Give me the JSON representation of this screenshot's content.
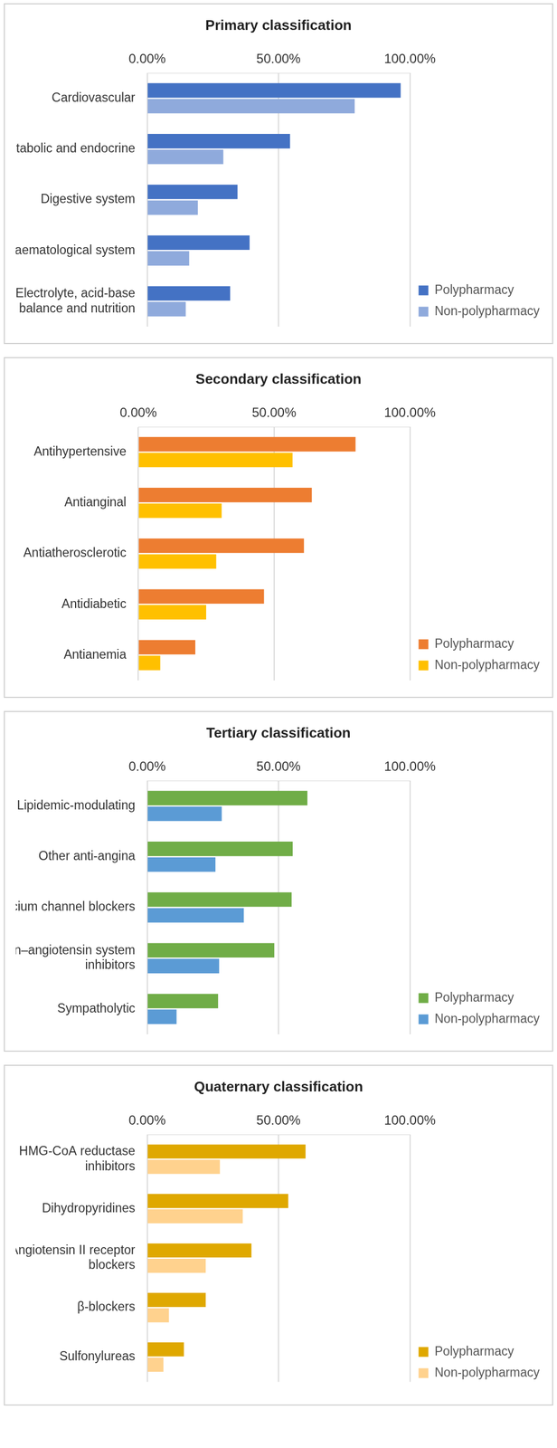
{
  "chart_data": [
    {
      "type": "bar",
      "title": "Primary classification",
      "orientation": "horizontal",
      "categories": [
        "Cardiovascular",
        "Metabolic and endocrine",
        "Digestive system",
        "Haematological system",
        "Electrolyte, acid-base balance and nutrition"
      ],
      "series": [
        {
          "name": "Polypharmacy",
          "color": "#4472c4",
          "values": [
            96.5,
            54.4,
            34.4,
            39,
            31.6
          ]
        },
        {
          "name": "Non-polypharmacy",
          "color": "#8faadc",
          "values": [
            79,
            29,
            19.3,
            16,
            14.7
          ]
        }
      ],
      "xlim": [
        0,
        100
      ],
      "xticks": [
        {
          "value": 0,
          "label": "0.00%"
        },
        {
          "value": 50,
          "label": "50.00%"
        },
        {
          "value": 100,
          "label": "100.00%"
        }
      ],
      "grid": true,
      "legend": "lower right"
    },
    {
      "type": "bar",
      "title": "Secondary classification",
      "orientation": "horizontal",
      "categories": [
        "Antihypertensive",
        "Antianginal",
        "Antiatherosclerotic",
        "Antidiabetic",
        "Antianemia"
      ],
      "series": [
        {
          "name": "Polypharmacy",
          "color": "#ed7d31",
          "values": [
            80,
            63.9,
            61,
            46.3,
            21
          ]
        },
        {
          "name": "Non-polypharmacy",
          "color": "#ffc000",
          "values": [
            56.8,
            30.7,
            28.7,
            25,
            8.1
          ]
        }
      ],
      "xlim": [
        0,
        100
      ],
      "xticks": [
        {
          "value": 0,
          "label": "0.00%"
        },
        {
          "value": 50,
          "label": "50.00%"
        },
        {
          "value": 100,
          "label": "100.00%"
        }
      ],
      "grid": true,
      "legend": "lower right"
    },
    {
      "type": "bar",
      "title": "Tertiary classification",
      "orientation": "horizontal",
      "categories": [
        "Lipidemic-modulating",
        "Other anti-angina",
        "Calcium channel blockers",
        "Renin–angiotensin system inhibitors",
        "Sympatholytic"
      ],
      "series": [
        {
          "name": "Polypharmacy",
          "color": "#70ad47",
          "values": [
            61,
            55.4,
            55,
            48.4,
            27
          ]
        },
        {
          "name": "Non-polypharmacy",
          "color": "#5b9bd5",
          "values": [
            28.4,
            26,
            36.8,
            27.4,
            11.2
          ]
        }
      ],
      "xlim": [
        0,
        100
      ],
      "xticks": [
        {
          "value": 0,
          "label": "0.00%"
        },
        {
          "value": 50,
          "label": "50.00%"
        },
        {
          "value": 100,
          "label": "100.00%"
        }
      ],
      "grid": true,
      "legend": "lower right"
    },
    {
      "type": "bar",
      "title": "Quaternary classification",
      "orientation": "horizontal",
      "categories": [
        "HMG-CoA reductase inhibitors",
        "Dihydropyridines",
        "Angiotensin II receptor blockers",
        "β-blockers",
        "Sulfonylureas"
      ],
      "series": [
        {
          "name": "Polypharmacy",
          "color": "#dfa800",
          "values": [
            60.3,
            53.7,
            39.7,
            22.3,
            14
          ]
        },
        {
          "name": "Non-polypharmacy",
          "color": "#ffd28e",
          "values": [
            27.7,
            36.4,
            22.3,
            8.3,
            6.2
          ]
        }
      ],
      "xlim": [
        0,
        100
      ],
      "xticks": [
        {
          "value": 0,
          "label": "0.00%"
        },
        {
          "value": 50,
          "label": "50.00%"
        },
        {
          "value": 100,
          "label": "100.00%"
        }
      ],
      "grid": true,
      "legend": "lower right"
    }
  ]
}
